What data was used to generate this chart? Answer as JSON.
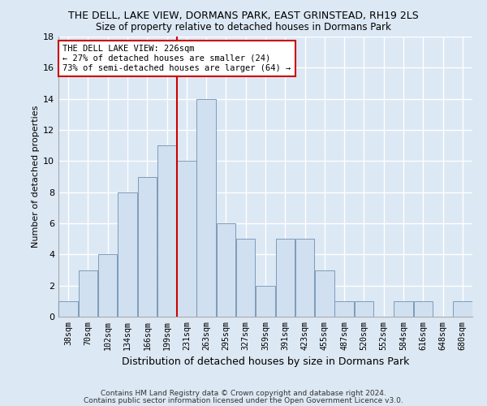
{
  "title": "THE DELL, LAKE VIEW, DORMANS PARK, EAST GRINSTEAD, RH19 2LS",
  "subtitle": "Size of property relative to detached houses in Dormans Park",
  "xlabel": "Distribution of detached houses by size in Dormans Park",
  "ylabel": "Number of detached properties",
  "footer1": "Contains HM Land Registry data © Crown copyright and database right 2024.",
  "footer2": "Contains public sector information licensed under the Open Government Licence v3.0.",
  "annotation_line1": "THE DELL LAKE VIEW: 226sqm",
  "annotation_line2": "← 27% of detached houses are smaller (24)",
  "annotation_line3": "73% of semi-detached houses are larger (64) →",
  "bar_labels": [
    "38sqm",
    "70sqm",
    "102sqm",
    "134sqm",
    "166sqm",
    "199sqm",
    "231sqm",
    "263sqm",
    "295sqm",
    "327sqm",
    "359sqm",
    "391sqm",
    "423sqm",
    "455sqm",
    "487sqm",
    "520sqm",
    "552sqm",
    "584sqm",
    "616sqm",
    "648sqm",
    "680sqm"
  ],
  "bar_values": [
    1,
    3,
    4,
    8,
    9,
    11,
    10,
    14,
    6,
    5,
    2,
    5,
    5,
    3,
    1,
    1,
    0,
    1,
    1,
    0,
    1
  ],
  "bar_color": "#d0e0f0",
  "bar_edge_color": "#7090b0",
  "vline_x": 5.5,
  "vline_color": "#cc0000",
  "annotation_box_color": "#ffffff",
  "annotation_box_edge": "#cc0000",
  "ylim": [
    0,
    18
  ],
  "yticks": [
    0,
    2,
    4,
    6,
    8,
    10,
    12,
    14,
    16,
    18
  ],
  "bg_color": "#dce8f4",
  "plot_bg": "#dce8f4",
  "grid_color": "#ffffff",
  "title_fontsize": 9,
  "subtitle_fontsize": 8.5
}
